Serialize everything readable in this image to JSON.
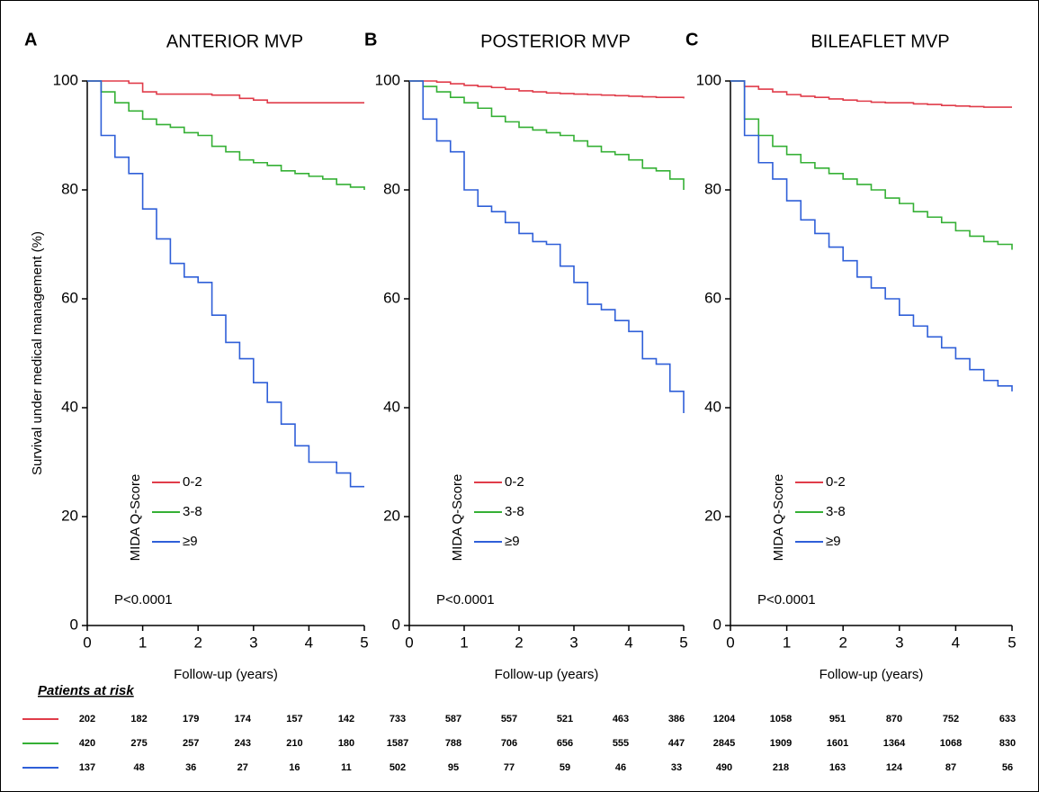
{
  "chart_data": [
    {
      "type": "line",
      "label": "A",
      "title": "ANTERIOR MVP",
      "ylabel": "Survival under medical management (%)",
      "xlabel": "Follow-up (years)",
      "legend_title": "MIDA Q-Score",
      "annotation": "P<0.0001",
      "x": [
        0,
        0.25,
        0.5,
        0.75,
        1,
        1.25,
        1.5,
        1.75,
        2,
        2.25,
        2.5,
        2.75,
        3,
        3.25,
        3.5,
        3.75,
        4,
        4.25,
        4.5,
        4.75,
        5
      ],
      "series": [
        {
          "name": "0-2",
          "color": "#e03c4a",
          "values": [
            100,
            100,
            100,
            99.6,
            98,
            97.6,
            97.6,
            97.6,
            97.6,
            97.4,
            97.4,
            96.8,
            96.5,
            96,
            96,
            96,
            96,
            96,
            96,
            96,
            96
          ]
        },
        {
          "name": "3-8",
          "color": "#35b035",
          "values": [
            100,
            98,
            96,
            94.5,
            93,
            92,
            91.5,
            90.5,
            90,
            88,
            87,
            85.5,
            85,
            84.5,
            83.5,
            83,
            82.5,
            82,
            81,
            80.5,
            80
          ]
        },
        {
          "name": "≥9",
          "color": "#2f5fd8",
          "values": [
            100,
            90,
            86,
            83,
            76.5,
            71,
            66.5,
            64,
            63,
            57,
            52,
            49,
            44.6,
            41,
            37,
            33,
            30,
            30,
            28,
            25.5,
            25.5
          ]
        }
      ],
      "xlim": [
        0,
        5
      ],
      "ylim": [
        0,
        100
      ],
      "xticks": [
        0,
        1,
        2,
        3,
        4,
        5
      ],
      "yticks": [
        0,
        20,
        40,
        60,
        80,
        100
      ]
    },
    {
      "type": "line",
      "label": "B",
      "title": "POSTERIOR MVP",
      "xlabel": "Follow-up (years)",
      "legend_title": "MIDA Q-Score",
      "annotation": "P<0.0001",
      "x": [
        0,
        0.25,
        0.5,
        0.75,
        1,
        1.25,
        1.5,
        1.75,
        2,
        2.25,
        2.5,
        2.75,
        3,
        3.25,
        3.5,
        3.75,
        4,
        4.25,
        4.5,
        4.75,
        5
      ],
      "series": [
        {
          "name": "0-2",
          "color": "#e03c4a",
          "values": [
            100,
            100,
            99.8,
            99.5,
            99.2,
            99,
            98.8,
            98.5,
            98.2,
            98,
            97.8,
            97.7,
            97.6,
            97.5,
            97.4,
            97.3,
            97.2,
            97.1,
            97,
            97,
            96.8
          ]
        },
        {
          "name": "3-8",
          "color": "#35b035",
          "values": [
            100,
            99,
            98,
            97,
            96,
            95,
            93.5,
            92.5,
            91.5,
            91,
            90.5,
            90,
            89,
            88,
            87,
            86.5,
            85.5,
            84,
            83.5,
            82,
            80
          ]
        },
        {
          "name": "≥9",
          "color": "#2f5fd8",
          "values": [
            100,
            93,
            89,
            87,
            80,
            77,
            76,
            74,
            72,
            70.5,
            70,
            66,
            63,
            59,
            58,
            56,
            54,
            49,
            48,
            43,
            39
          ]
        }
      ],
      "xlim": [
        0,
        5
      ],
      "ylim": [
        0,
        100
      ],
      "xticks": [
        0,
        1,
        2,
        3,
        4,
        5
      ],
      "yticks": [
        0,
        20,
        40,
        60,
        80,
        100
      ]
    },
    {
      "type": "line",
      "label": "C",
      "title": "BILEAFLET MVP",
      "xlabel": "Follow-up (years)",
      "legend_title": "MIDA Q-Score",
      "annotation": "P<0.0001",
      "x": [
        0,
        0.25,
        0.5,
        0.75,
        1,
        1.25,
        1.5,
        1.75,
        2,
        2.25,
        2.5,
        2.75,
        3,
        3.25,
        3.5,
        3.75,
        4,
        4.25,
        4.5,
        4.75,
        5
      ],
      "series": [
        {
          "name": "0-2",
          "color": "#e03c4a",
          "values": [
            100,
            99,
            98.5,
            98,
            97.5,
            97.2,
            97,
            96.7,
            96.5,
            96.3,
            96.1,
            96,
            96,
            95.8,
            95.7,
            95.5,
            95.4,
            95.3,
            95.2,
            95.2,
            95.2
          ]
        },
        {
          "name": "3-8",
          "color": "#35b035",
          "values": [
            100,
            93,
            90,
            88,
            86.5,
            85,
            84,
            83,
            82,
            81,
            80,
            78.5,
            77.5,
            76,
            75,
            74,
            72.5,
            71.5,
            70.5,
            70,
            69
          ]
        },
        {
          "name": "≥9",
          "color": "#2f5fd8",
          "values": [
            100,
            90,
            85,
            82,
            78,
            74.5,
            72,
            69.5,
            67,
            64,
            62,
            60,
            57,
            55,
            53,
            51,
            49,
            47,
            45,
            44,
            43
          ]
        }
      ],
      "xlim": [
        0,
        5
      ],
      "ylim": [
        0,
        100
      ],
      "xticks": [
        0,
        1,
        2,
        3,
        4,
        5
      ],
      "yticks": [
        0,
        20,
        40,
        60,
        80,
        100
      ]
    }
  ],
  "risk_table": {
    "title": "Patients at risk",
    "colors": [
      "#e03c4a",
      "#35b035",
      "#2f5fd8"
    ],
    "rows": [
      [
        202,
        182,
        179,
        174,
        157,
        142,
        733,
        587,
        557,
        521,
        463,
        386,
        1204,
        1058,
        951,
        870,
        752,
        633
      ],
      [
        420,
        275,
        257,
        243,
        210,
        180,
        1587,
        788,
        706,
        656,
        555,
        447,
        2845,
        1909,
        1601,
        1364,
        1068,
        830
      ],
      [
        137,
        48,
        36,
        27,
        16,
        11,
        502,
        95,
        77,
        59,
        46,
        33,
        490,
        218,
        163,
        124,
        87,
        56
      ]
    ]
  }
}
